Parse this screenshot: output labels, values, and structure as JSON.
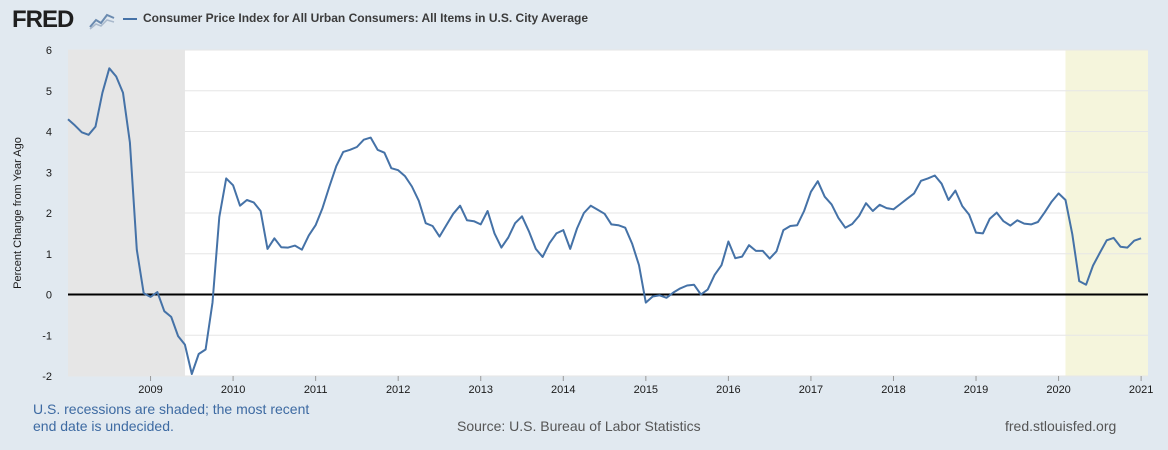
{
  "brand": {
    "logo_text": "FRED"
  },
  "footer": {
    "recession_note": "U.S. recessions are shaded; the most recent end date is undecided.",
    "source": "Source: U.S. Bureau of Labor Statistics",
    "url": "fred.stlouisfed.org"
  },
  "colors": {
    "series": "#4572a7",
    "recession_shade": "#e6e6e6",
    "undecided_shade": "#f5f5dc",
    "plot_bg": "#ffffff",
    "zero_line": "#000000",
    "grid": "#e6e6e6"
  },
  "chart_data": {
    "type": "line",
    "xlabel": "",
    "ylabel": "Percent Change from Year Ago",
    "ylim": [
      -2,
      6
    ],
    "yticks": [
      "-2",
      "-1",
      "0",
      "1",
      "2",
      "3",
      "4",
      "5",
      "6"
    ],
    "xlim": [
      "2008-01",
      "2021-02"
    ],
    "xticks": [
      "2009",
      "2010",
      "2011",
      "2012",
      "2013",
      "2014",
      "2015",
      "2016",
      "2017",
      "2018",
      "2019",
      "2020",
      "2021"
    ],
    "grid": "horizontal",
    "reference_line": 0,
    "shaded_periods": [
      {
        "start": "2008-01",
        "end": "2009-06",
        "kind": "recession"
      },
      {
        "start": "2020-02",
        "end": "2021-02",
        "kind": "recession (end date undecided)"
      }
    ],
    "series": [
      {
        "name": "Consumer Price Index for All Urban Consumers: All Items in U.S. City Average",
        "start": "2008-01",
        "frequency": "monthly",
        "values": [
          4.3,
          4.15,
          3.98,
          3.92,
          4.12,
          4.95,
          5.55,
          5.35,
          4.95,
          3.73,
          1.1,
          0.03,
          -0.06,
          0.06,
          -0.41,
          -0.55,
          -1.02,
          -1.23,
          -1.95,
          -1.46,
          -1.35,
          -0.2,
          1.9,
          2.85,
          2.68,
          2.18,
          2.32,
          2.26,
          2.05,
          1.12,
          1.38,
          1.16,
          1.15,
          1.2,
          1.1,
          1.45,
          1.7,
          2.12,
          2.65,
          3.15,
          3.5,
          3.55,
          3.62,
          3.8,
          3.85,
          3.55,
          3.48,
          3.1,
          3.05,
          2.9,
          2.65,
          2.3,
          1.75,
          1.68,
          1.42,
          1.7,
          1.98,
          2.18,
          1.82,
          1.8,
          1.72,
          2.05,
          1.5,
          1.15,
          1.4,
          1.75,
          1.92,
          1.55,
          1.12,
          0.92,
          1.26,
          1.5,
          1.58,
          1.12,
          1.62,
          2.0,
          2.18,
          2.08,
          1.98,
          1.72,
          1.7,
          1.64,
          1.25,
          0.72,
          -0.2,
          -0.05,
          -0.02,
          -0.08,
          0.05,
          0.15,
          0.22,
          0.24,
          0.0,
          0.12,
          0.48,
          0.72,
          1.3,
          0.89,
          0.93,
          1.21,
          1.07,
          1.07,
          0.88,
          1.06,
          1.58,
          1.68,
          1.7,
          2.05,
          2.52,
          2.78,
          2.4,
          2.21,
          1.88,
          1.64,
          1.73,
          1.93,
          2.24,
          2.05,
          2.2,
          2.12,
          2.09,
          2.22,
          2.35,
          2.48,
          2.79,
          2.85,
          2.92,
          2.72,
          2.32,
          2.55,
          2.17,
          1.96,
          1.52,
          1.5,
          1.86,
          2.01,
          1.8,
          1.69,
          1.82,
          1.74,
          1.72,
          1.78,
          2.02,
          2.28,
          2.48,
          2.32,
          1.48,
          0.33,
          0.24,
          0.71,
          1.02,
          1.33,
          1.39,
          1.17,
          1.15,
          1.32,
          1.38
        ]
      }
    ]
  }
}
